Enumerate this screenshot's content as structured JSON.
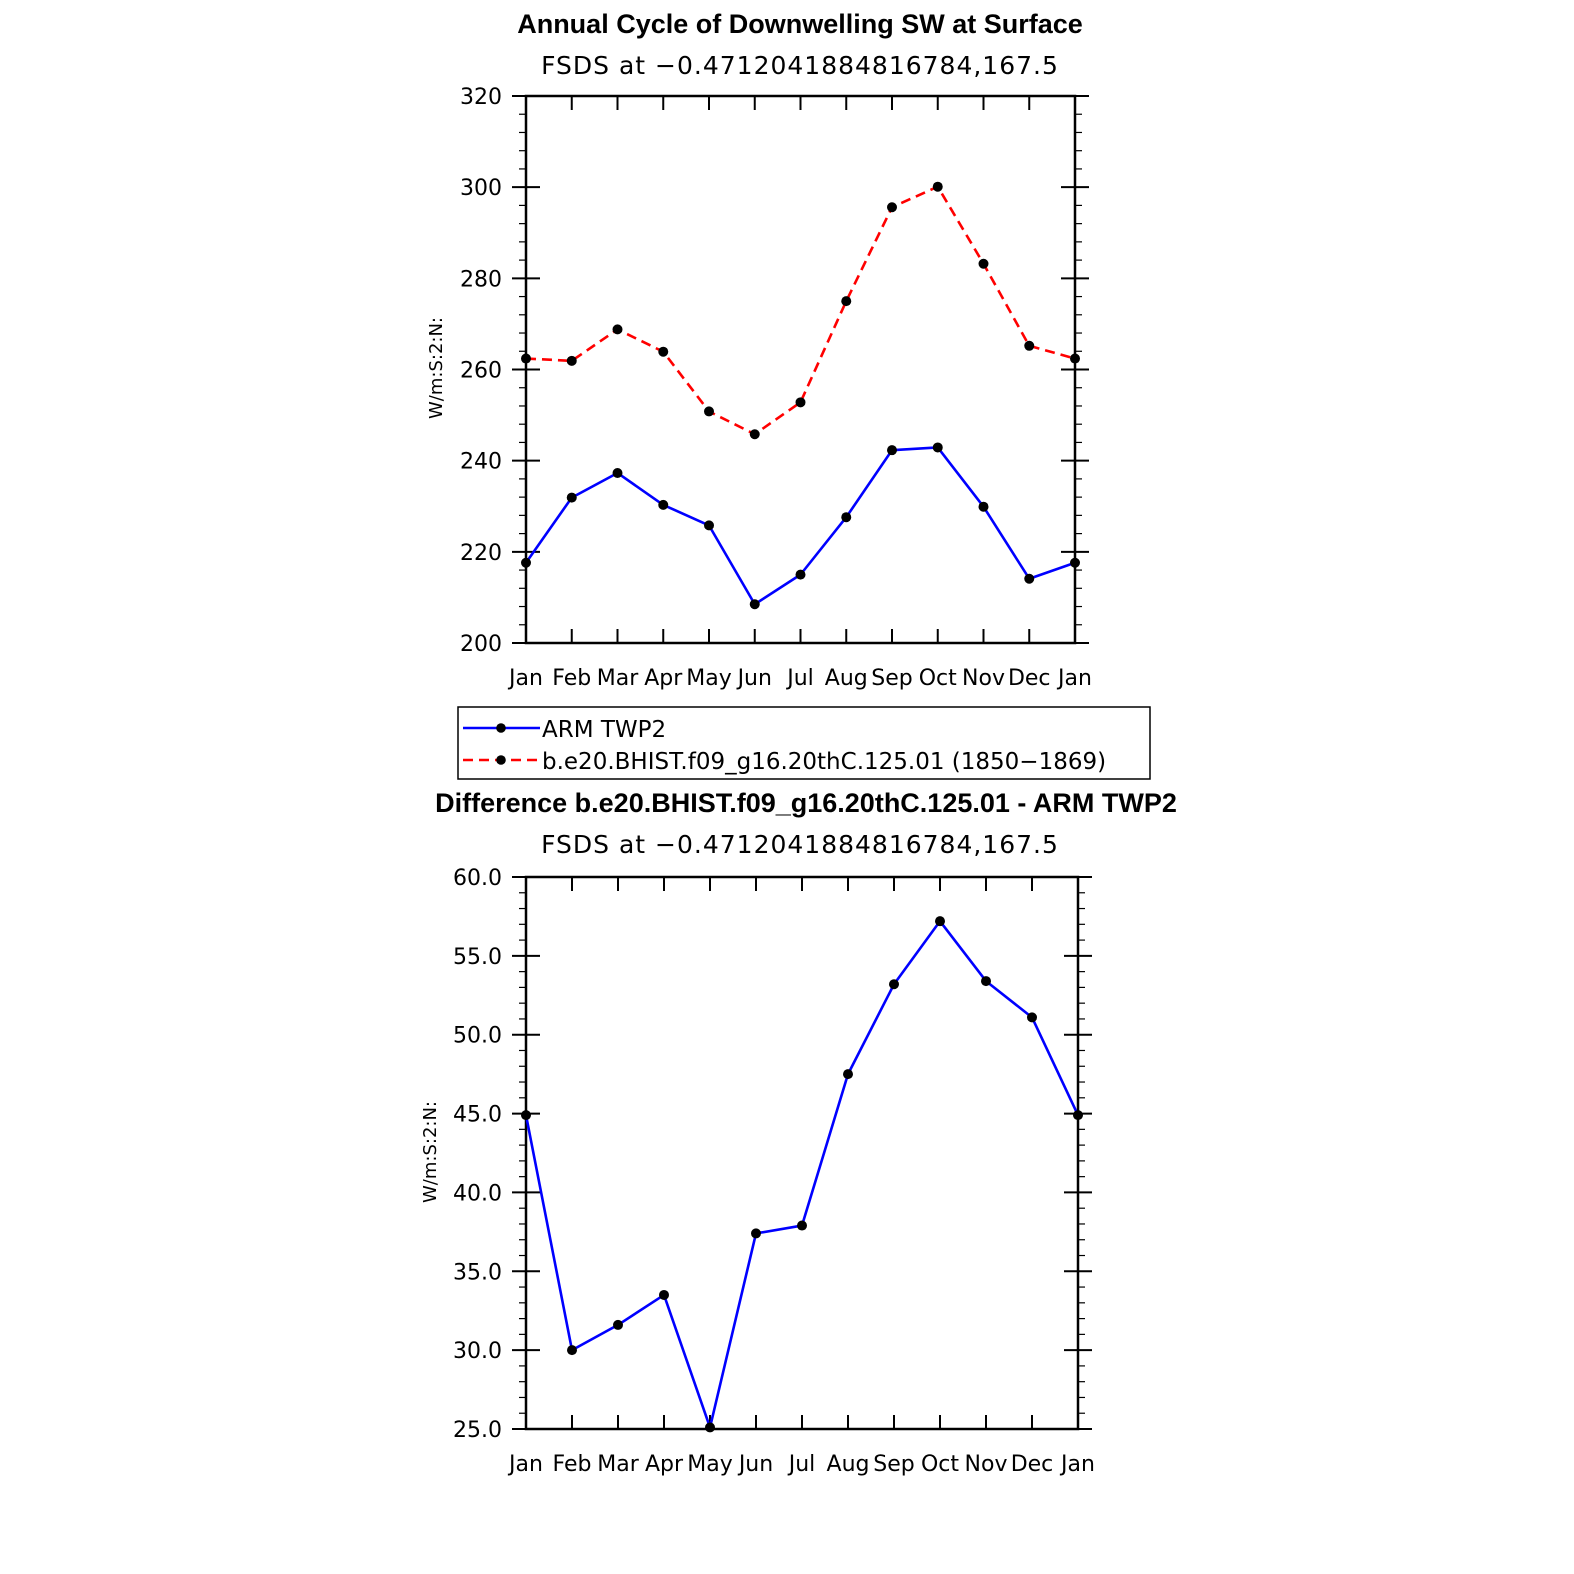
{
  "chart_data": [
    {
      "type": "line",
      "title": "Annual Cycle of Downwelling SW at Surface",
      "subtitle": "FSDS at −0.4712041884816784,167.5",
      "ylabel": "W/m:S:2:N:",
      "categories": [
        "Jan",
        "Feb",
        "Mar",
        "Apr",
        "May",
        "Jun",
        "Jul",
        "Aug",
        "Sep",
        "Oct",
        "Nov",
        "Dec",
        "Jan"
      ],
      "yticks": [
        "200",
        "220",
        "240",
        "260",
        "280",
        "300",
        "320"
      ],
      "ylim": [
        200,
        320
      ],
      "series": [
        {
          "name": "ARM TWP2",
          "color": "#0000ff",
          "dash": "solid",
          "values": [
            217.6,
            231.9,
            237.3,
            230.3,
            225.8,
            208.5,
            215.0,
            227.6,
            242.3,
            242.9,
            229.9,
            214.1,
            217.6
          ]
        },
        {
          "name": "b.e20.BHIST.f09_g16.20thC.125.01 (1850−1869)",
          "color": "#ff0000",
          "dash": "dashed",
          "values": [
            262.4,
            261.9,
            268.8,
            263.9,
            250.8,
            245.8,
            252.8,
            275.0,
            295.6,
            300.1,
            283.2,
            265.2,
            262.4
          ]
        }
      ]
    },
    {
      "type": "line",
      "title": "Difference b.e20.BHIST.f09_g16.20thC.125.01 - ARM TWP2",
      "subtitle": "FSDS at −0.4712041884816784,167.5",
      "ylabel": "W/m:S:2:N:",
      "categories": [
        "Jan",
        "Feb",
        "Mar",
        "Apr",
        "May",
        "Jun",
        "Jul",
        "Aug",
        "Sep",
        "Oct",
        "Nov",
        "Dec",
        "Jan"
      ],
      "yticks": [
        "25.0",
        "30.0",
        "35.0",
        "40.0",
        "45.0",
        "50.0",
        "55.0",
        "60.0"
      ],
      "ylim": [
        25,
        60
      ],
      "series": [
        {
          "color": "#0000ff",
          "dash": "solid",
          "values": [
            44.9,
            30.0,
            31.6,
            33.5,
            25.1,
            37.4,
            37.9,
            47.5,
            53.2,
            57.2,
            53.4,
            51.1,
            44.9
          ]
        }
      ]
    }
  ]
}
